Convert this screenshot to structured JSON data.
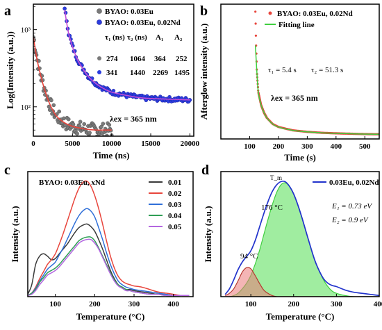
{
  "chart_data": [
    {
      "panel": "a",
      "type": "scatter",
      "xlabel": "Time (ns)",
      "ylabel": "Log(Intensity (a.u.))",
      "x_ticks": [
        "0",
        "5000",
        "10000",
        "15000",
        "20000"
      ],
      "y_tick_labels": [
        "10²",
        "10³"
      ],
      "xlim": [
        0,
        20500
      ],
      "ylim_log10": [
        1.62,
        3.33
      ],
      "y_scale": "log",
      "legend_position": "top-right",
      "series": [
        {
          "name": "BYAO: 0.03Eu",
          "color": "#7a7a7a",
          "fit_color": "#e8453c",
          "x": [
            0,
            500,
            1000,
            1500,
            2000,
            2500,
            3000,
            4000,
            5000,
            6000,
            7000,
            8000,
            9000,
            10000
          ],
          "y": [
            800,
            400,
            240,
            160,
            115,
            90,
            75,
            62,
            56,
            53,
            51,
            50,
            50,
            50
          ]
        },
        {
          "name": "BYAO: 0.03Eu, 0.02Nd",
          "color": "#2b3de0",
          "fit_color": "#c24dd8",
          "x": [
            4000,
            4500,
            5000,
            5500,
            6000,
            7000,
            8000,
            9000,
            10000,
            12000,
            14000,
            16000,
            18000,
            20000
          ],
          "y": [
            1800,
            900,
            600,
            440,
            350,
            250,
            200,
            172,
            155,
            140,
            130,
            127,
            125,
            123
          ]
        }
      ],
      "table": {
        "headers": [
          "τ₁ (ns)",
          "τ₂ (ns)",
          "A₁",
          "A₂"
        ],
        "rows": [
          [
            "274",
            "1064",
            "364",
            "252"
          ],
          [
            "341",
            "1440",
            "2269",
            "1495"
          ]
        ]
      },
      "annotation": "λex = 365 nm"
    },
    {
      "panel": "b",
      "type": "scatter",
      "xlabel": "Time (s)",
      "ylabel": "Afterglow intensity (a.u.)",
      "x_ticks": [
        "100",
        "200",
        "300",
        "400",
        "500"
      ],
      "xlim": [
        0,
        550
      ],
      "ylim": [
        0,
        3600
      ],
      "legend_position": "top-right",
      "series": [
        {
          "name": "BYAO: 0.03Eu, 0.02Nd",
          "color": "#e8453c",
          "marker": "dot",
          "x": [
            120,
            122,
            125,
            130,
            140,
            150,
            160,
            180,
            200,
            250,
            300,
            350,
            400,
            450,
            500,
            550
          ],
          "y": [
            3400,
            2600,
            1800,
            1250,
            900,
            700,
            560,
            400,
            320,
            230,
            190,
            165,
            150,
            140,
            130,
            125
          ]
        },
        {
          "name": "Fitting line",
          "color": "#3fcf3f",
          "marker": "line",
          "x": [
            120,
            125,
            130,
            140,
            150,
            160,
            180,
            200,
            250,
            300,
            350,
            400,
            450,
            500,
            550
          ],
          "y": [
            2500,
            1800,
            1250,
            900,
            700,
            560,
            400,
            320,
            230,
            190,
            165,
            150,
            140,
            130,
            125
          ]
        }
      ],
      "annotations": [
        "τ₁ = 5.4 s",
        "τ₂ = 51.3 s",
        "λex = 365 nm"
      ]
    },
    {
      "panel": "c",
      "type": "line",
      "title": "BYAO: 0.03Eu, xNd",
      "xlabel": "Temperature (°C)",
      "ylabel": "Intensity (a.u.)",
      "x_ticks": [
        "100",
        "200",
        "300",
        "400"
      ],
      "xlim": [
        30,
        450
      ],
      "ylim": [
        0,
        1.05
      ],
      "legend_position": "top-right",
      "x": [
        30,
        40,
        50,
        60,
        70,
        80,
        90,
        100,
        110,
        120,
        130,
        140,
        150,
        160,
        170,
        180,
        190,
        200,
        210,
        220,
        230,
        240,
        250,
        260,
        270,
        280,
        290,
        300,
        320,
        340,
        360,
        380,
        400,
        420,
        440
      ],
      "series": [
        {
          "name": "0.01",
          "color": "#3a3a3a",
          "values": [
            0.02,
            0.1,
            0.27,
            0.34,
            0.36,
            0.34,
            0.31,
            0.32,
            0.36,
            0.4,
            0.44,
            0.49,
            0.54,
            0.58,
            0.6,
            0.61,
            0.59,
            0.55,
            0.48,
            0.4,
            0.31,
            0.22,
            0.15,
            0.1,
            0.08,
            0.06,
            0.06,
            0.05,
            0.04,
            0.03,
            0.02,
            0.02,
            0.01,
            0.01,
            0.01
          ]
        },
        {
          "name": "0.02",
          "color": "#e8453c",
          "values": [
            0.01,
            0.03,
            0.08,
            0.15,
            0.21,
            0.27,
            0.31,
            0.36,
            0.44,
            0.53,
            0.63,
            0.73,
            0.83,
            0.91,
            0.96,
            0.97,
            0.93,
            0.85,
            0.74,
            0.61,
            0.47,
            0.34,
            0.24,
            0.17,
            0.13,
            0.11,
            0.1,
            0.09,
            0.08,
            0.06,
            0.04,
            0.03,
            0.02,
            0.01,
            0.01
          ]
        },
        {
          "name": "0.03",
          "color": "#2f6fd8",
          "values": [
            0.01,
            0.03,
            0.07,
            0.13,
            0.18,
            0.23,
            0.26,
            0.29,
            0.35,
            0.41,
            0.48,
            0.55,
            0.62,
            0.68,
            0.72,
            0.74,
            0.72,
            0.67,
            0.58,
            0.48,
            0.37,
            0.27,
            0.19,
            0.13,
            0.1,
            0.08,
            0.07,
            0.06,
            0.05,
            0.04,
            0.03,
            0.02,
            0.01,
            0.01,
            0.01
          ]
        },
        {
          "name": "0.04",
          "color": "#2e9e55",
          "values": [
            0.01,
            0.03,
            0.06,
            0.12,
            0.16,
            0.2,
            0.22,
            0.24,
            0.27,
            0.31,
            0.35,
            0.39,
            0.43,
            0.47,
            0.49,
            0.5,
            0.5,
            0.47,
            0.41,
            0.34,
            0.27,
            0.2,
            0.14,
            0.1,
            0.08,
            0.06,
            0.05,
            0.04,
            0.03,
            0.02,
            0.02,
            0.01,
            0.01,
            0.01,
            0.01
          ]
        },
        {
          "name": "0.05",
          "color": "#b366e0",
          "values": [
            0.01,
            0.02,
            0.05,
            0.1,
            0.14,
            0.18,
            0.2,
            0.22,
            0.25,
            0.29,
            0.33,
            0.37,
            0.41,
            0.45,
            0.47,
            0.48,
            0.48,
            0.45,
            0.4,
            0.33,
            0.26,
            0.19,
            0.13,
            0.09,
            0.07,
            0.05,
            0.05,
            0.04,
            0.03,
            0.02,
            0.02,
            0.01,
            0.01,
            0.01,
            0.01
          ]
        }
      ]
    },
    {
      "panel": "d",
      "type": "area",
      "xlabel": "Temperature (°C)",
      "ylabel": "Intensity (a.u.)",
      "x_ticks": [
        "100",
        "200",
        "300",
        "400"
      ],
      "xlim": [
        30,
        400
      ],
      "ylim": [
        0,
        1.12
      ],
      "legend_position": "top-right",
      "x": [
        40,
        50,
        60,
        70,
        80,
        90,
        100,
        110,
        120,
        130,
        140,
        150,
        160,
        170,
        180,
        190,
        200,
        210,
        220,
        230,
        240,
        250,
        260,
        270,
        280,
        290,
        300,
        320,
        340,
        360,
        380,
        400
      ],
      "series": [
        {
          "name": "0.03Eu, 0.02Nd",
          "color": "#2233cc",
          "role": "measured",
          "values": [
            0.02,
            0.07,
            0.15,
            0.24,
            0.31,
            0.36,
            0.41,
            0.5,
            0.62,
            0.74,
            0.85,
            0.94,
            1.0,
            1.03,
            1.03,
            0.99,
            0.92,
            0.82,
            0.7,
            0.57,
            0.44,
            0.32,
            0.23,
            0.16,
            0.12,
            0.1,
            0.09,
            0.06,
            0.04,
            0.03,
            0.02,
            0.01
          ]
        },
        {
          "name": "",
          "color": "#d98080",
          "role": "fit",
          "values": [
            0.01,
            0.03,
            0.07,
            0.14,
            0.22,
            0.26,
            0.25,
            0.19,
            0.12,
            0.06,
            0.03,
            0.01,
            0.0,
            0.0,
            0.0,
            0.0,
            0.0,
            0.0,
            0.0,
            0.0,
            0.0,
            0.0,
            0.0,
            0.0,
            0.0,
            0.0,
            0.0,
            0.0,
            0.0,
            0.0,
            0.0,
            0.0
          ]
        },
        {
          "name": "",
          "color": "#3fcf3f",
          "role": "fit",
          "values": [
            0.0,
            0.0,
            0.01,
            0.03,
            0.07,
            0.12,
            0.19,
            0.29,
            0.41,
            0.55,
            0.69,
            0.82,
            0.93,
            1.0,
            1.02,
            0.99,
            0.92,
            0.82,
            0.7,
            0.57,
            0.44,
            0.32,
            0.23,
            0.15,
            0.09,
            0.05,
            0.03,
            0.01,
            0.0,
            0.0,
            0.0,
            0.0
          ]
        }
      ],
      "annotations": [
        "94 °C",
        "176 °C",
        "T_m",
        "E₁ = 0.73 eV",
        "E₂ = 0.9 eV"
      ]
    }
  ],
  "panel_letters": [
    "a",
    "b",
    "c",
    "d"
  ]
}
